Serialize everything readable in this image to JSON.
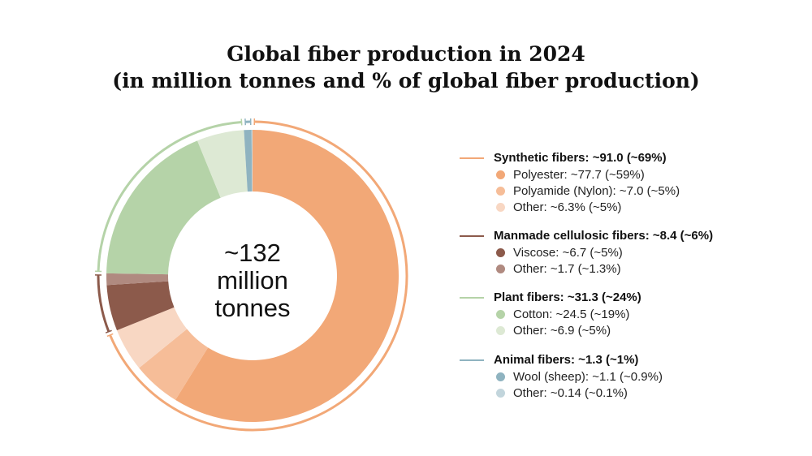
{
  "title_line1": "Global fiber production in 2024",
  "title_line2": "(in million tonnes and % of global fiber production)",
  "center": {
    "line1": "~132",
    "line2": "million",
    "line3": "tonnes"
  },
  "chart_data": {
    "type": "pie",
    "variant": "donut",
    "total": 132,
    "total_label": "~132 million tonnes",
    "unit": "million tonnes",
    "slices": [
      {
        "label": "Polyester",
        "value": 77.7,
        "pct": "~59%",
        "color": "#F2A877",
        "group": "Synthetic fibers"
      },
      {
        "label": "Polyamide (Nylon)",
        "value": 7.0,
        "pct": "~5%",
        "color": "#F6BD98",
        "group": "Synthetic fibers"
      },
      {
        "label": "Other",
        "value": 6.3,
        "pct": "~5%",
        "color": "#F8D7C3",
        "group": "Synthetic fibers"
      },
      {
        "label": "Viscose",
        "value": 6.7,
        "pct": "~5%",
        "color": "#8C5A4B",
        "group": "Manmade cellulosic fibers"
      },
      {
        "label": "Other",
        "value": 1.7,
        "pct": "~1.3%",
        "color": "#B08A80",
        "group": "Manmade cellulosic fibers"
      },
      {
        "label": "Cotton",
        "value": 24.5,
        "pct": "~19%",
        "color": "#B5D3A8",
        "group": "Plant fibers"
      },
      {
        "label": "Other",
        "value": 6.9,
        "pct": "~5%",
        "color": "#DDE9D4",
        "group": "Plant fibers"
      },
      {
        "label": "Wool (sheep)",
        "value": 1.1,
        "pct": "~0.9%",
        "color": "#8FB3C0",
        "group": "Animal fibers"
      },
      {
        "label": "Other",
        "value": 0.14,
        "pct": "~0.1%",
        "color": "#C2D5DC",
        "group": "Animal fibers"
      }
    ],
    "groups": [
      {
        "name": "Synthetic fibers",
        "value": 91.0,
        "pct": "~69%",
        "color": "#F2A877"
      },
      {
        "name": "Manmade cellulosic fibers",
        "value": 8.4,
        "pct": "~6%",
        "color": "#8C5A4B"
      },
      {
        "name": "Plant fibers",
        "value": 31.3,
        "pct": "~24%",
        "color": "#B5D3A8"
      },
      {
        "name": "Animal fibers",
        "value": 1.3,
        "pct": "~1%",
        "color": "#8FB3C0"
      }
    ],
    "legend_position": "right"
  },
  "legend": {
    "groups": [
      {
        "label": "Synthetic fibers: ~91.0 (~69%)",
        "color": "#F2A877",
        "items": [
          {
            "label": "Polyester: ~77.7 (~59%)",
            "color": "#F2A877"
          },
          {
            "label": "Polyamide (Nylon): ~7.0 (~5%)",
            "color": "#F6BD98"
          },
          {
            "label": "Other: ~6.3% (~5%)",
            "color": "#F8D7C3"
          }
        ]
      },
      {
        "label": "Manmade cellulosic fibers: ~8.4 (~6%)",
        "color": "#8C5A4B",
        "items": [
          {
            "label": "Viscose: ~6.7 (~5%)",
            "color": "#8C5A4B"
          },
          {
            "label": "Other: ~1.7 (~1.3%)",
            "color": "#B08A80"
          }
        ]
      },
      {
        "label": "Plant fibers: ~31.3 (~24%)",
        "color": "#B5D3A8",
        "items": [
          {
            "label": "Cotton: ~24.5 (~19%)",
            "color": "#B5D3A8"
          },
          {
            "label": "Other: ~6.9 (~5%)",
            "color": "#DDE9D4"
          }
        ]
      },
      {
        "label": "Animal fibers: ~1.3 (~1%)",
        "color": "#8FB3C0",
        "items": [
          {
            "label": "Wool (sheep): ~1.1 (~0.9%)",
            "color": "#8FB3C0"
          },
          {
            "label": "Other: ~0.14 (~0.1%)",
            "color": "#C2D5DC"
          }
        ]
      }
    ]
  }
}
